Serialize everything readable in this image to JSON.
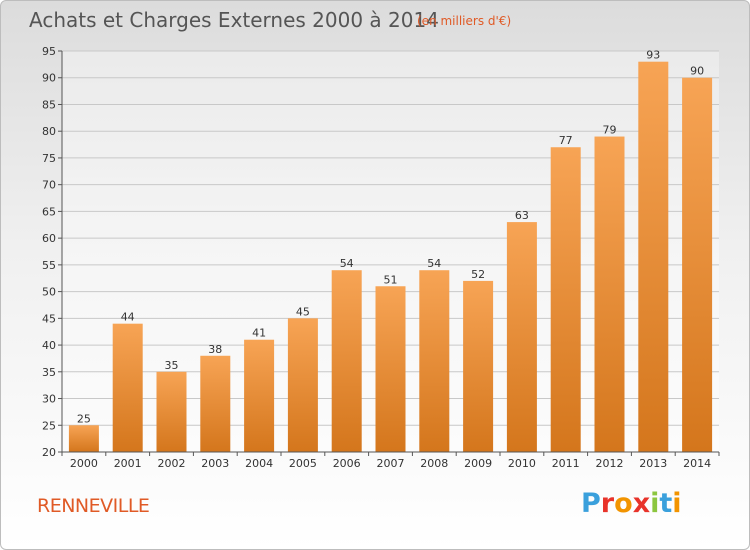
{
  "header": {
    "title": "Achats et Charges Externes 2000 à 2014",
    "subtitle": "(en milliers d'€)"
  },
  "footer": {
    "city": "RENNEVILLE"
  },
  "logo": {
    "text": "Proxiti"
  },
  "colors": {
    "bar_light": "#f7a455",
    "bar_dark": "#d4761c",
    "accent": "#e05a26",
    "logo_colors": [
      "#3aa0dc",
      "#e8332a",
      "#f29400",
      "#e8332a",
      "#8cc63f",
      "#3aa0dc",
      "#f29400"
    ]
  },
  "chart_data": {
    "type": "bar",
    "title": "Achats et Charges Externes 2000 à 2014",
    "subtitle": "(en milliers d'€)",
    "categories": [
      "2000",
      "2001",
      "2002",
      "2003",
      "2004",
      "2005",
      "2006",
      "2007",
      "2008",
      "2009",
      "2010",
      "2011",
      "2012",
      "2013",
      "2014"
    ],
    "values": [
      25,
      44,
      35,
      38,
      41,
      45,
      54,
      51,
      54,
      52,
      63,
      77,
      79,
      93,
      90
    ],
    "ylim": [
      20,
      95
    ],
    "yticks": [
      20,
      25,
      30,
      35,
      40,
      45,
      50,
      55,
      60,
      65,
      70,
      75,
      80,
      85,
      90,
      95
    ],
    "grid": true,
    "xlabel": "",
    "ylabel": ""
  }
}
